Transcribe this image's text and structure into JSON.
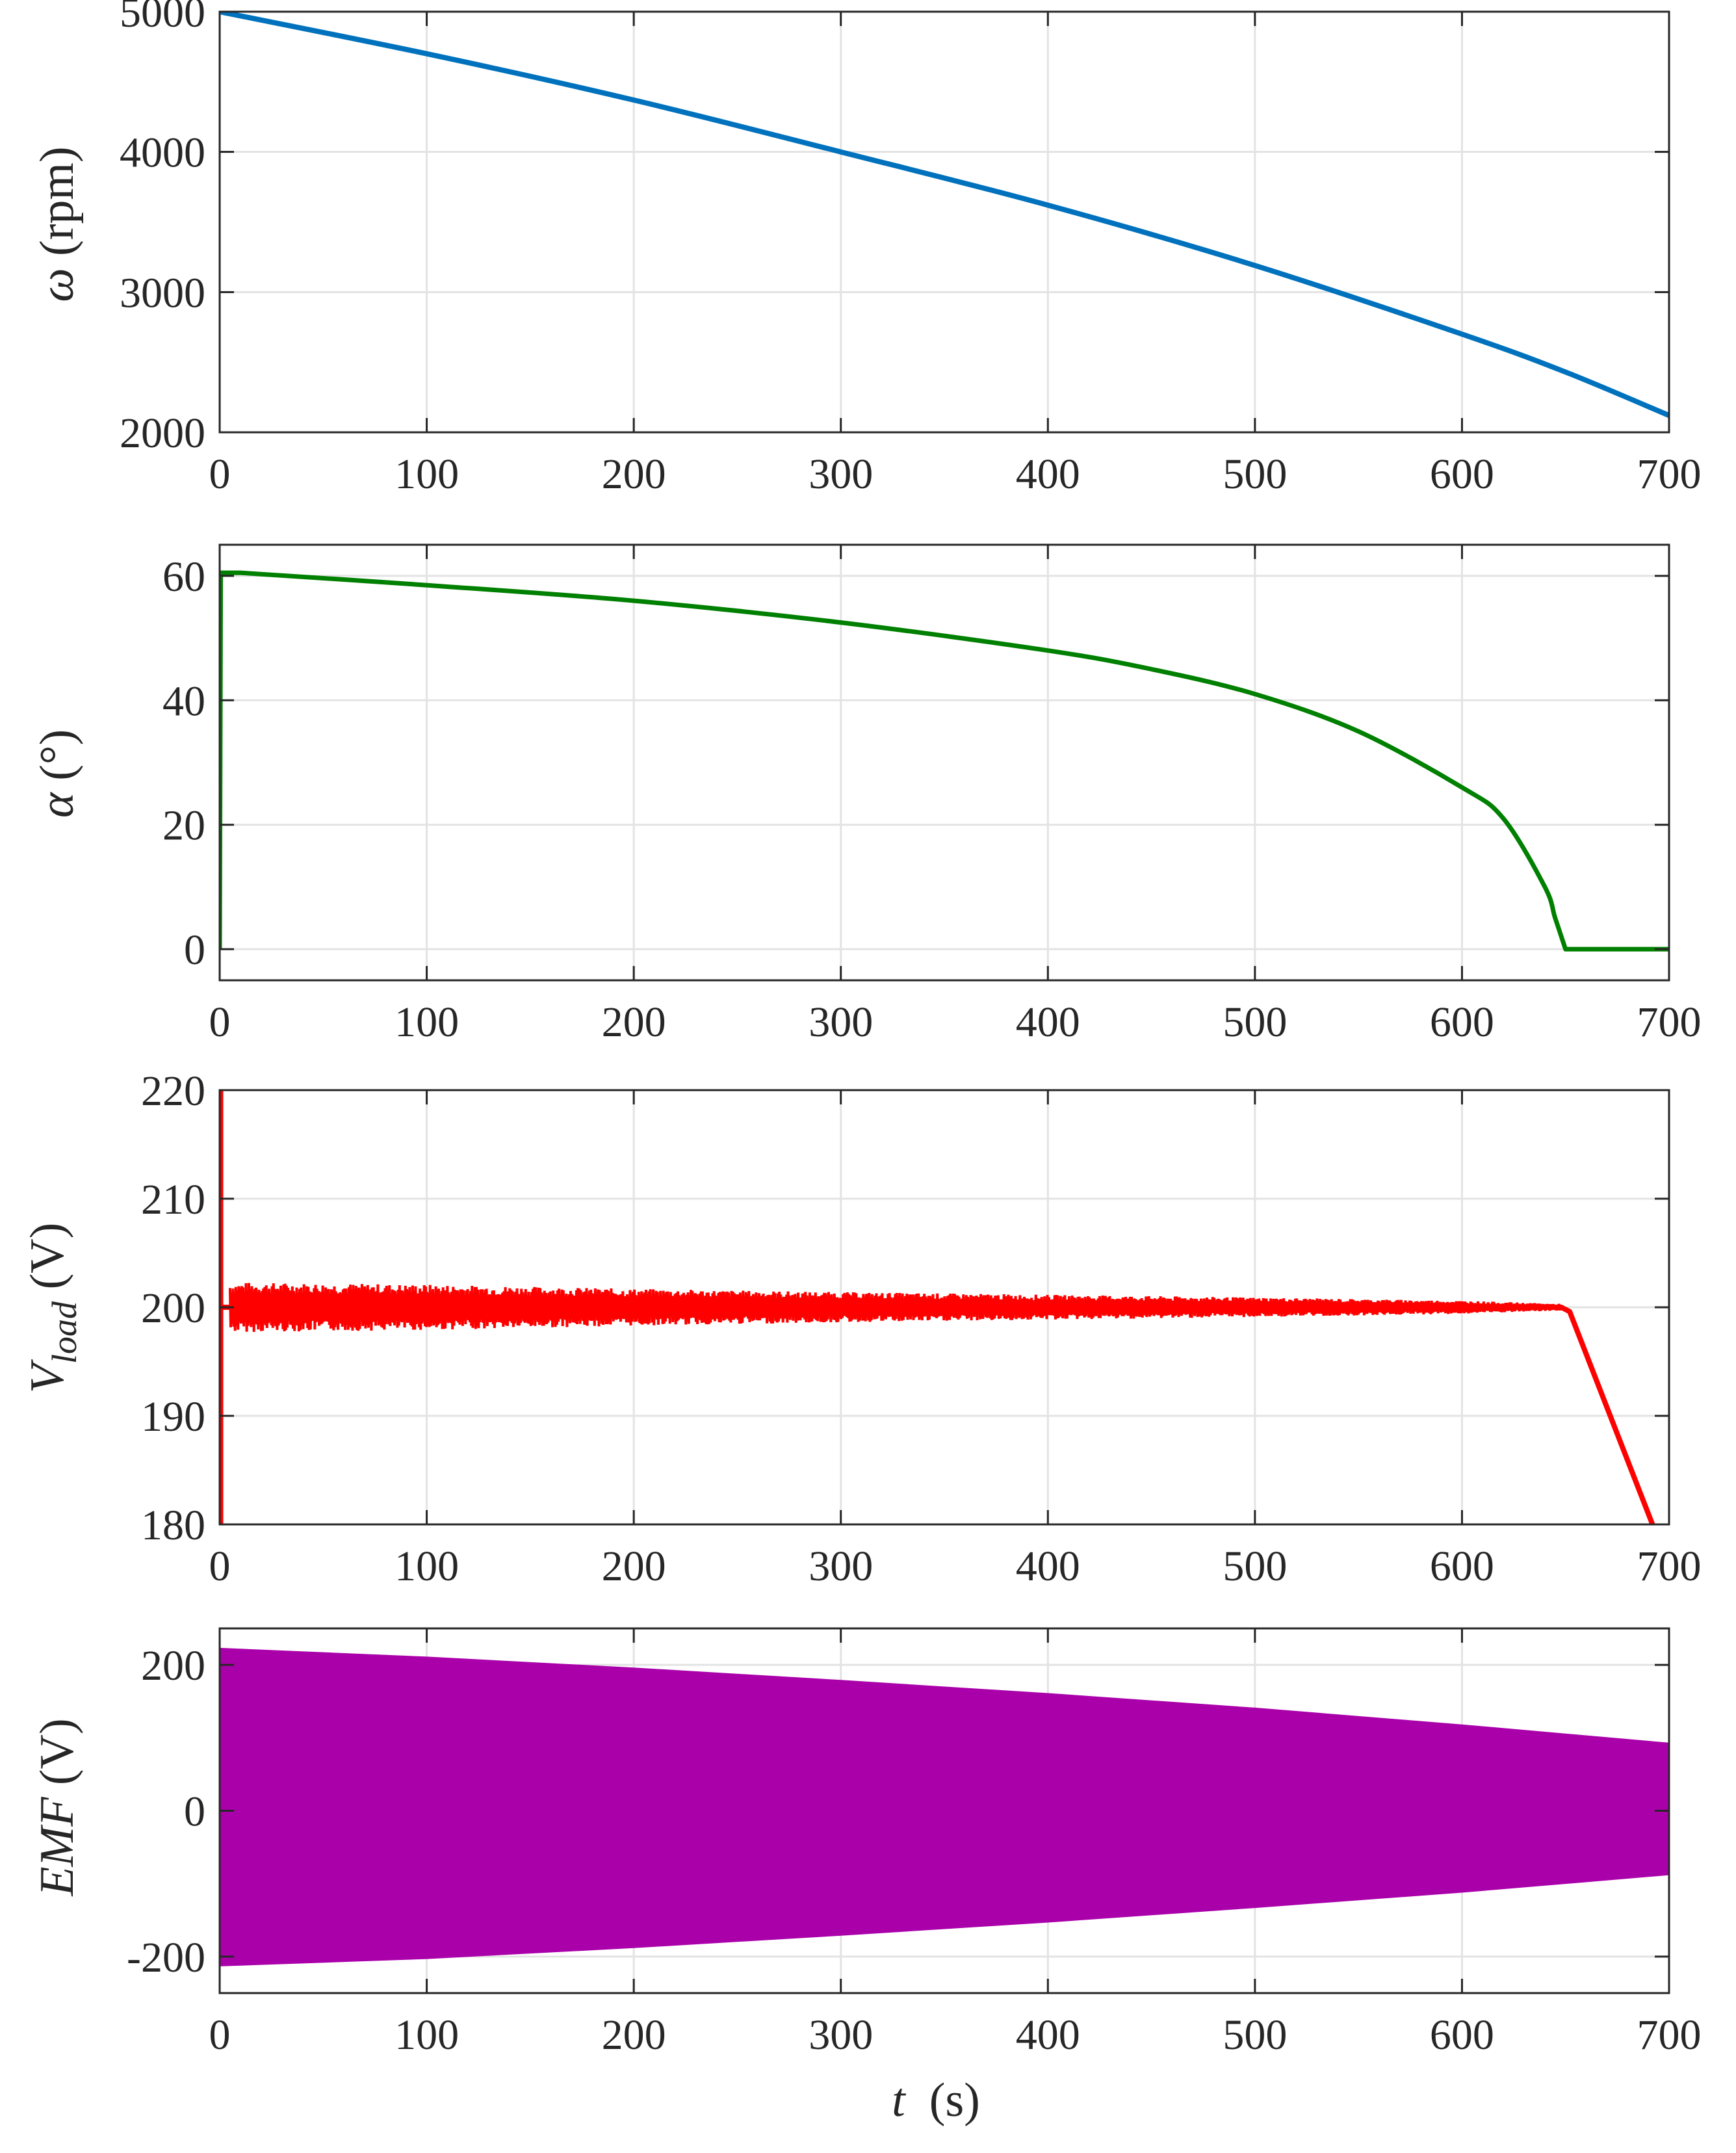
{
  "chart_data": [
    {
      "type": "line",
      "name": "speed",
      "color": "#0072BD",
      "ylabel": {
        "symbol": "ω",
        "unit": " (rpm)"
      },
      "xlabel": "",
      "xlim": [
        0,
        700
      ],
      "ylim": [
        2000,
        5000
      ],
      "xticks": [
        0,
        100,
        200,
        300,
        400,
        500,
        600,
        700
      ],
      "yticks": [
        2000,
        3000,
        4000,
        5000
      ],
      "grid": true,
      "series": [
        {
          "name": "ω",
          "x": [
            0,
            100,
            200,
            300,
            400,
            500,
            600,
            650,
            700
          ],
          "y": [
            5000,
            4700,
            4370,
            4000,
            3620,
            3190,
            2700,
            2430,
            2120
          ]
        }
      ]
    },
    {
      "type": "line",
      "name": "firing-angle",
      "color": "#008000",
      "ylabel": {
        "symbol": "α",
        "unit": " (°)"
      },
      "xlabel": "",
      "xlim": [
        0,
        700
      ],
      "ylim": [
        -5,
        65
      ],
      "xticks": [
        0,
        100,
        200,
        300,
        400,
        500,
        600,
        700
      ],
      "yticks": [
        0,
        20,
        40,
        60
      ],
      "grid": true,
      "series": [
        {
          "name": "α",
          "x": [
            0,
            0.5,
            10,
            100,
            200,
            300,
            400,
            450,
            500,
            550,
            600,
            620,
            640,
            645,
            650,
            700
          ],
          "y": [
            0,
            60.5,
            60.5,
            58.5,
            56,
            52.5,
            48,
            45,
            41,
            35,
            26,
            21,
            10,
            5,
            0,
            0
          ]
        }
      ]
    },
    {
      "type": "line",
      "name": "load-voltage",
      "color": "#FF0000",
      "ylabel": {
        "symbol": "V",
        "subscript": "load",
        "unit": " (V)"
      },
      "xlabel": "",
      "xlim": [
        0,
        700
      ],
      "ylim": [
        180,
        220
      ],
      "xticks": [
        0,
        100,
        200,
        300,
        400,
        500,
        600,
        700
      ],
      "yticks": [
        180,
        190,
        200,
        210,
        220
      ],
      "grid": true,
      "series": [
        {
          "name": "V_load mean",
          "x": [
            0,
            648,
            652,
            692
          ],
          "y": [
            200,
            200,
            199.6,
            180
          ]
        }
      ],
      "ripple": {
        "x": [
          5,
          100,
          200,
          300,
          400,
          500,
          600,
          648
        ],
        "amplitude": [
          2.3,
          2.1,
          1.7,
          1.4,
          1.15,
          0.9,
          0.6,
          0.3
        ]
      },
      "startup_spike": {
        "x": 0,
        "y_range": [
          180,
          220
        ]
      }
    },
    {
      "type": "area",
      "name": "emf",
      "color": "#AA00AA",
      "ylabel": {
        "symbol": "EMF",
        "unit": " (V)"
      },
      "xlabel": {
        "symbol": "t",
        "unit": "  (s)"
      },
      "xlim": [
        0,
        700
      ],
      "ylim": [
        -250,
        250
      ],
      "xticks": [
        0,
        100,
        200,
        300,
        400,
        500,
        600,
        700
      ],
      "yticks": [
        -200,
        0,
        200
      ],
      "grid": true,
      "series": [
        {
          "name": "EMF envelope",
          "x": [
            0,
            100,
            200,
            300,
            400,
            500,
            600,
            700
          ],
          "upper": [
            222,
            210,
            195,
            178,
            160,
            140,
            117,
            92
          ],
          "lower": [
            -212,
            -202,
            -187,
            -170,
            -152,
            -132,
            -111,
            -87
          ]
        }
      ]
    }
  ]
}
